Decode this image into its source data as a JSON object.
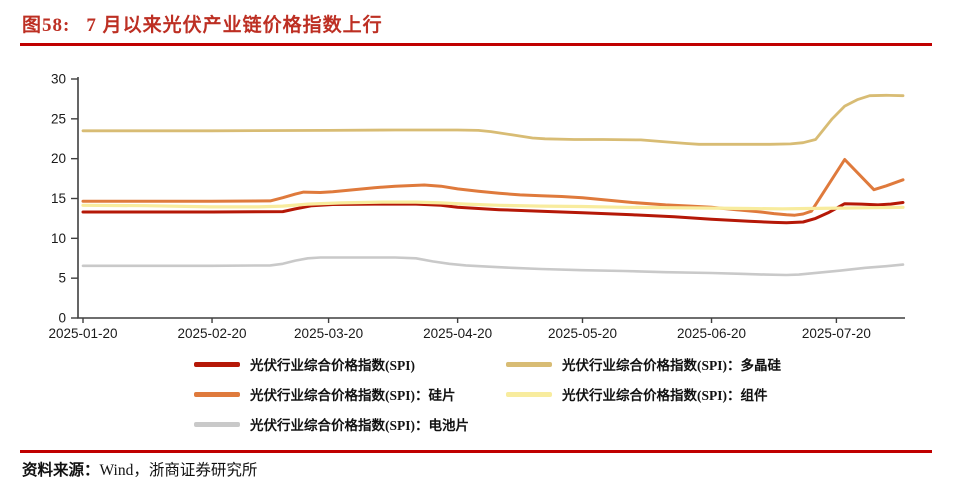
{
  "header": {
    "figure_label": "图58:",
    "title": "7 月以来光伏产业链价格指数上行"
  },
  "footer": {
    "source_label": "资料来源：",
    "source_text": "Wind，浙商证券研究所"
  },
  "theme": {
    "title_color": "#bd2f23",
    "rule_color": "#c00000",
    "axis_color": "#3f3f3f",
    "tick_label_color": "#1a1a1a"
  },
  "chart_data": {
    "type": "line",
    "title": "图58: 7月以来光伏产业链价格指数上行",
    "xlabel": "",
    "ylabel": "",
    "ylim": [
      0,
      30
    ],
    "y_ticks": [
      0,
      5,
      10,
      15,
      20,
      25,
      30
    ],
    "x_domain_days": [
      0,
      197
    ],
    "x_ticks": [
      {
        "day": 0,
        "label": "2025-01-20"
      },
      {
        "day": 31,
        "label": "2025-02-20"
      },
      {
        "day": 59,
        "label": "2025-03-20"
      },
      {
        "day": 90,
        "label": "2025-04-20"
      },
      {
        "day": 120,
        "label": "2025-05-20"
      },
      {
        "day": 151,
        "label": "2025-06-20"
      },
      {
        "day": 181,
        "label": "2025-07-20"
      }
    ],
    "grid": false,
    "legend_position": "bottom",
    "legend_order": [
      0,
      3,
      1,
      4,
      2
    ],
    "series": [
      {
        "name": "光伏行业综合价格指数(SPI)",
        "color": "#b51807",
        "stroke_width": 3,
        "points": [
          [
            0,
            13.3
          ],
          [
            20,
            13.3
          ],
          [
            31,
            13.3
          ],
          [
            48,
            13.35
          ],
          [
            51,
            13.7
          ],
          [
            55,
            14.1
          ],
          [
            60,
            14.25
          ],
          [
            70,
            14.3
          ],
          [
            80,
            14.3
          ],
          [
            86,
            14.15
          ],
          [
            90,
            13.9
          ],
          [
            100,
            13.6
          ],
          [
            110,
            13.4
          ],
          [
            120,
            13.2
          ],
          [
            132,
            12.95
          ],
          [
            142,
            12.7
          ],
          [
            151,
            12.4
          ],
          [
            160,
            12.15
          ],
          [
            166,
            12.0
          ],
          [
            169,
            11.95
          ],
          [
            173,
            12.05
          ],
          [
            176,
            12.5
          ],
          [
            179,
            13.2
          ],
          [
            183,
            14.35
          ],
          [
            187,
            14.3
          ],
          [
            191,
            14.2
          ],
          [
            194,
            14.3
          ],
          [
            197,
            14.5
          ]
        ]
      },
      {
        "name": "光伏行业综合价格指数(SPI)：硅片",
        "color": "#df7a3c",
        "stroke_width": 3,
        "points": [
          [
            0,
            14.65
          ],
          [
            20,
            14.65
          ],
          [
            31,
            14.65
          ],
          [
            45,
            14.7
          ],
          [
            48,
            15.1
          ],
          [
            51,
            15.55
          ],
          [
            53,
            15.8
          ],
          [
            57,
            15.75
          ],
          [
            60,
            15.85
          ],
          [
            65,
            16.1
          ],
          [
            70,
            16.35
          ],
          [
            75,
            16.55
          ],
          [
            82,
            16.7
          ],
          [
            86,
            16.55
          ],
          [
            90,
            16.2
          ],
          [
            95,
            15.9
          ],
          [
            100,
            15.65
          ],
          [
            105,
            15.45
          ],
          [
            110,
            15.35
          ],
          [
            115,
            15.25
          ],
          [
            120,
            15.1
          ],
          [
            126,
            14.8
          ],
          [
            132,
            14.5
          ],
          [
            140,
            14.2
          ],
          [
            146,
            14.05
          ],
          [
            151,
            13.9
          ],
          [
            157,
            13.6
          ],
          [
            162,
            13.35
          ],
          [
            166,
            13.1
          ],
          [
            169,
            12.95
          ],
          [
            171,
            12.9
          ],
          [
            173,
            13.05
          ],
          [
            175,
            13.4
          ],
          [
            183,
            19.9
          ],
          [
            190,
            16.1
          ],
          [
            193,
            16.6
          ],
          [
            197,
            17.35
          ]
        ]
      },
      {
        "name": "光伏行业综合价格指数(SPI)：电池片",
        "color": "#c9c9c9",
        "stroke_width": 2.6,
        "points": [
          [
            0,
            6.55
          ],
          [
            20,
            6.55
          ],
          [
            31,
            6.55
          ],
          [
            45,
            6.6
          ],
          [
            48,
            6.8
          ],
          [
            51,
            7.2
          ],
          [
            54,
            7.5
          ],
          [
            57,
            7.6
          ],
          [
            65,
            7.6
          ],
          [
            75,
            7.6
          ],
          [
            80,
            7.5
          ],
          [
            84,
            7.1
          ],
          [
            88,
            6.8
          ],
          [
            92,
            6.6
          ],
          [
            97,
            6.45
          ],
          [
            103,
            6.3
          ],
          [
            110,
            6.15
          ],
          [
            120,
            6.0
          ],
          [
            130,
            5.9
          ],
          [
            140,
            5.75
          ],
          [
            151,
            5.65
          ],
          [
            158,
            5.55
          ],
          [
            164,
            5.45
          ],
          [
            169,
            5.4
          ],
          [
            172,
            5.45
          ],
          [
            177,
            5.7
          ],
          [
            182,
            5.95
          ],
          [
            188,
            6.3
          ],
          [
            193,
            6.5
          ],
          [
            197,
            6.7
          ]
        ]
      },
      {
        "name": "光伏行业综合价格指数(SPI)：多晶硅",
        "color": "#d8bc74",
        "stroke_width": 2.8,
        "points": [
          [
            0,
            23.5
          ],
          [
            31,
            23.5
          ],
          [
            59,
            23.55
          ],
          [
            75,
            23.6
          ],
          [
            90,
            23.6
          ],
          [
            95,
            23.55
          ],
          [
            98,
            23.4
          ],
          [
            103,
            23.0
          ],
          [
            108,
            22.6
          ],
          [
            111,
            22.5
          ],
          [
            118,
            22.4
          ],
          [
            125,
            22.4
          ],
          [
            134,
            22.35
          ],
          [
            140,
            22.1
          ],
          [
            145,
            21.9
          ],
          [
            148,
            21.8
          ],
          [
            155,
            21.8
          ],
          [
            165,
            21.8
          ],
          [
            170,
            21.85
          ],
          [
            173,
            22.0
          ],
          [
            176,
            22.4
          ],
          [
            180,
            25.0
          ],
          [
            183,
            26.6
          ],
          [
            186,
            27.4
          ],
          [
            189,
            27.9
          ],
          [
            193,
            27.95
          ],
          [
            197,
            27.9
          ]
        ]
      },
      {
        "name": "光伏行业综合价格指数(SPI)：组件",
        "color": "#f8ec9e",
        "stroke_width": 3.2,
        "points": [
          [
            0,
            14.15
          ],
          [
            15,
            14.1
          ],
          [
            31,
            13.95
          ],
          [
            42,
            13.95
          ],
          [
            48,
            14.05
          ],
          [
            54,
            14.3
          ],
          [
            62,
            14.45
          ],
          [
            72,
            14.55
          ],
          [
            80,
            14.55
          ],
          [
            86,
            14.45
          ],
          [
            92,
            14.3
          ],
          [
            100,
            14.15
          ],
          [
            110,
            14.05
          ],
          [
            120,
            14.0
          ],
          [
            130,
            13.9
          ],
          [
            140,
            13.85
          ],
          [
            151,
            13.8
          ],
          [
            160,
            13.75
          ],
          [
            168,
            13.7
          ],
          [
            174,
            13.75
          ],
          [
            182,
            13.8
          ],
          [
            190,
            13.85
          ],
          [
            197,
            13.9
          ]
        ]
      }
    ]
  }
}
